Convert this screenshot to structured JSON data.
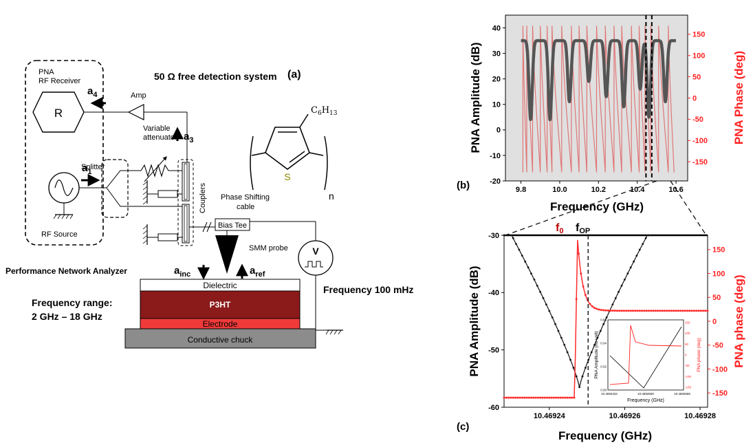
{
  "schematic": {
    "label": "(a)",
    "title": "50 Ω free detection system",
    "pna_title_line1": "PNA",
    "pna_title_line2": "RF Receiver",
    "receiver_symbol": "R",
    "a4": "a",
    "a4_sub": "4",
    "a1": "a",
    "a1_sub": "1",
    "a3": "a",
    "a3_sub": "3",
    "amp_label": "Amp",
    "variable_label_1": "Variable",
    "variable_label_2": "attenuator",
    "splitter_label": "Splitter",
    "couplers_label": "Couplers",
    "phase_shift_1": "Phase Shifting",
    "phase_shift_2": "cable",
    "bias_tee": "Bias Tee",
    "rf_source": "RF Source",
    "smm_probe": "SMM probe",
    "voltage_symbol": "V",
    "ainc": "a",
    "ainc_sub": "inc",
    "aref": "a",
    "aref_sub": "ref",
    "pna_full": "Performance Network Analyzer",
    "freq_range_1": "Frequency range:",
    "freq_range_2": "2 GHz – 18 GHz",
    "freq_mod": "Frequency 100 mHz",
    "dielectric": "Dielectric",
    "p3ht": "P3HT",
    "electrode": "Electrode",
    "chuck": "Conductive chuck",
    "mol_substituent": "C",
    "mol_sub_6": "6",
    "mol_h": "H",
    "mol_sub_13": "13",
    "mol_s": "S",
    "mol_n": "n"
  },
  "chart_data": [
    {
      "id": "b",
      "type": "line",
      "panel_label": "(b)",
      "xlabel": "Frequency (GHz)",
      "ylabel_left": "PNA Amplitude (dB)",
      "ylabel_right": "PNA Phase (deg)",
      "xlim": [
        9.72,
        10.66
      ],
      "ylim_left": [
        -20,
        45
      ],
      "ylim_right": [
        -195,
        195
      ],
      "xticks": [
        "9.8",
        "10.0",
        "10.2",
        "10.4",
        "10.6"
      ],
      "xtick_values": [
        9.8,
        10.0,
        10.2,
        10.4,
        10.6
      ],
      "yticks_left": [
        "-20",
        "-10",
        "0",
        "10",
        "20",
        "30",
        "40"
      ],
      "ytick_values_left": [
        -20,
        -10,
        0,
        10,
        20,
        30,
        40
      ],
      "yticks_right": [
        "-150",
        "-100",
        "-50",
        "0",
        "50",
        "100",
        "150"
      ],
      "ytick_values_right": [
        -150,
        -100,
        -50,
        0,
        50,
        100,
        150
      ],
      "grid": false,
      "background": "#e0e0e0",
      "amplitude_color": "#555555",
      "phase_color": "#e06a6a",
      "amplitude_resonances_ghz": [
        9.85,
        9.95,
        10.05,
        10.15,
        10.24,
        10.33,
        10.415,
        10.46,
        10.545
      ],
      "amplitude_resonance_depths_db": [
        31,
        31,
        24,
        16,
        22,
        26,
        19,
        30,
        24
      ],
      "amplitude_baseline_db": 35,
      "phase_wraps_ghz": [
        9.81,
        9.83,
        9.86,
        9.9,
        9.935,
        9.96,
        10.01,
        10.06,
        10.1,
        10.14,
        10.19,
        10.235,
        10.28,
        10.32,
        10.37,
        10.41,
        10.44,
        10.47,
        10.51,
        10.56,
        10.59
      ],
      "highlight_window_ghz": [
        10.445,
        10.475
      ]
    },
    {
      "id": "c",
      "type": "line",
      "panel_label": "(c)",
      "xlabel": "Frequency (GHz)",
      "ylabel_left": "PNA Amplitude (dB)",
      "ylabel_right": "PNA phase (deg)",
      "xlim": [
        10.469228,
        10.469282
      ],
      "ylim_left": [
        -60,
        -30
      ],
      "ylim_right": [
        -180,
        180
      ],
      "xticks": [
        "10.46924",
        "10.46926",
        "10.46928"
      ],
      "xtick_values": [
        10.46924,
        10.46926,
        10.46928
      ],
      "yticks_left": [
        "-60",
        "-50",
        "-40",
        "-30"
      ],
      "ytick_values_left": [
        -60,
        -50,
        -40,
        -30
      ],
      "yticks_right": [
        "-150",
        "-100",
        "-50",
        "0",
        "50",
        "100",
        "150"
      ],
      "ytick_values_right": [
        -150,
        -100,
        -50,
        0,
        50,
        100,
        150
      ],
      "amplitude_color": "#111111",
      "phase_color": "#ff2a2a",
      "f0_label": "f",
      "f0_sub": "0",
      "fop_label": "f",
      "fop_sub": "OP",
      "f0_ghz": 10.4692475,
      "fop_ghz": 10.4692503,
      "min_amplitude_db": -56.5,
      "edge_amplitude_db": -30,
      "phase_low_deg": -160,
      "phase_high_deg": 170,
      "phase_plateau_deg": 22
    },
    {
      "id": "inset",
      "type": "line",
      "xlabel": "Frequency (GHz)",
      "ylabel_left": "PNA Amplitude (no unit)",
      "ylabel_right": "PNA phase (deg)",
      "xticks": [
        "10.4692434",
        "10.4692500",
        "10.4692565"
      ],
      "yticks_left": [
        "0.00",
        "0.02",
        "0.04",
        "0.06"
      ],
      "yticks_right": [
        "-150",
        "-100",
        "-50",
        "0",
        "50",
        "100",
        "150"
      ]
    }
  ]
}
